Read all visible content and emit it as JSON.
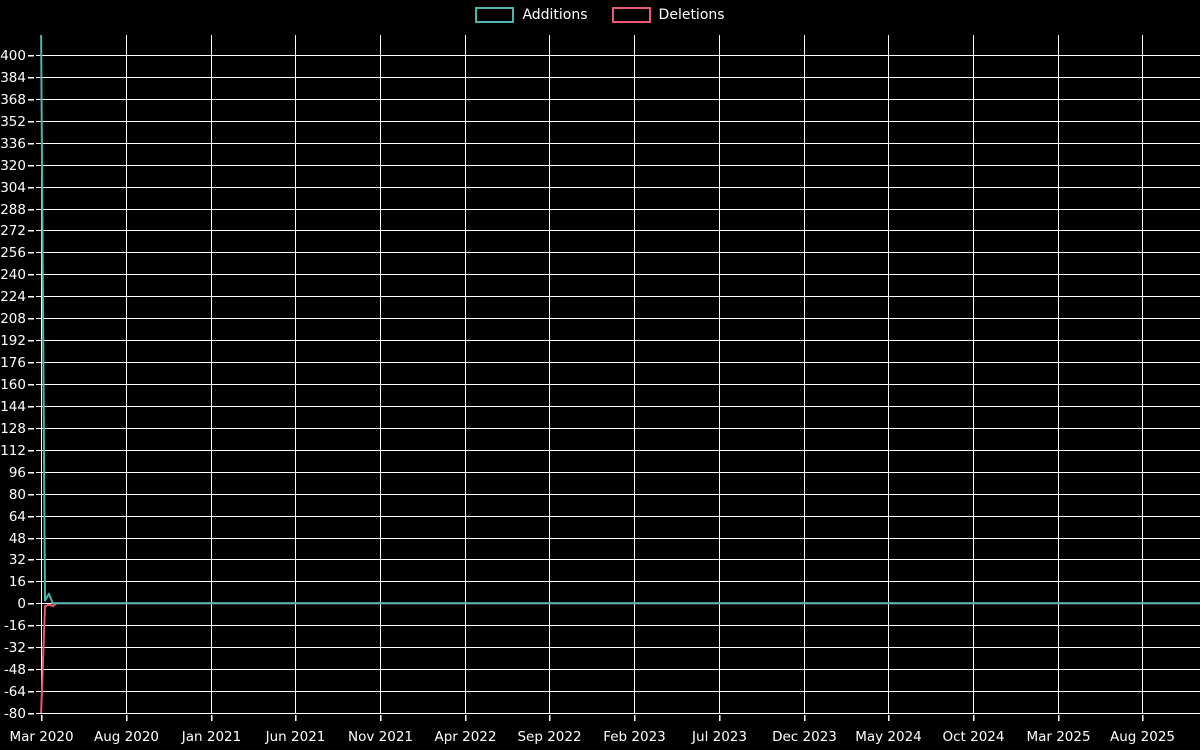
{
  "chart_data": {
    "type": "line",
    "title": "",
    "background_color": "#000000",
    "grid_color": "#ffffff",
    "text_color": "#ffffff",
    "legend": {
      "position": "top-center",
      "items": [
        {
          "label": "Additions",
          "color": "#4db6ac"
        },
        {
          "label": "Deletions",
          "color": "#e95b70"
        }
      ]
    },
    "x_axis": {
      "unit": "months-since-2020-03",
      "range_months": [
        -0.3,
        68.4
      ],
      "ticks": [
        {
          "label": "Mar 2020",
          "month": 0
        },
        {
          "label": "Aug 2020",
          "month": 5
        },
        {
          "label": "Jan 2021",
          "month": 10
        },
        {
          "label": "Jun 2021",
          "month": 15
        },
        {
          "label": "Nov 2021",
          "month": 20
        },
        {
          "label": "Apr 2022",
          "month": 25
        },
        {
          "label": "Sep 2022",
          "month": 30
        },
        {
          "label": "Feb 2023",
          "month": 35
        },
        {
          "label": "Jul 2023",
          "month": 40
        },
        {
          "label": "Dec 2023",
          "month": 45
        },
        {
          "label": "May 2024",
          "month": 50
        },
        {
          "label": "Oct 2024",
          "month": 55
        },
        {
          "label": "Mar 2025",
          "month": 60
        },
        {
          "label": "Aug 2025",
          "month": 65
        }
      ]
    },
    "y_axis": {
      "range": [
        -80,
        414.6
      ],
      "ticks": [
        400,
        384,
        368,
        352,
        336,
        320,
        304,
        288,
        272,
        256,
        240,
        224,
        208,
        192,
        176,
        160,
        144,
        128,
        112,
        96,
        80,
        64,
        48,
        32,
        16,
        0,
        -16,
        -32,
        -48,
        -64,
        -80
      ]
    },
    "series": [
      {
        "name": "Additions",
        "color": "#4db6ac",
        "points": [
          [
            0,
            417
          ],
          [
            0.23,
            2
          ],
          [
            0.46,
            7
          ],
          [
            0.69,
            0
          ],
          [
            68.4,
            0
          ]
        ]
      },
      {
        "name": "Deletions",
        "color": "#e95b70",
        "points": [
          [
            0,
            -80
          ],
          [
            0.23,
            -2
          ],
          [
            0.46,
            -1
          ],
          [
            0.69,
            -2
          ],
          [
            0.92,
            0
          ],
          [
            68.4,
            0
          ]
        ]
      }
    ]
  }
}
